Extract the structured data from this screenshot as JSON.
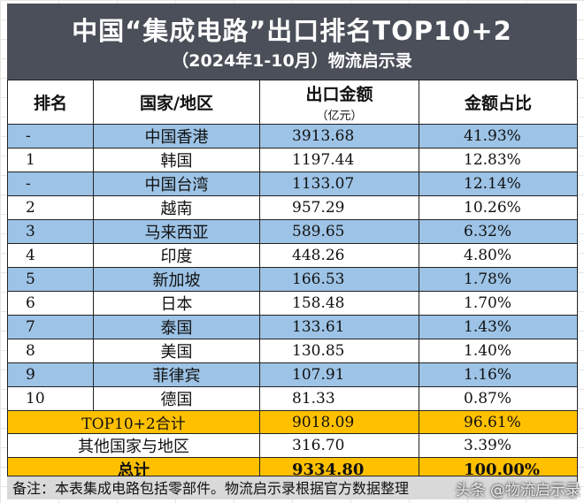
{
  "title": "中国“集成电路”出口排名TOP10+2",
  "subtitle": "（2024年1-10月）物流启示录",
  "headers": {
    "rank": "排名",
    "region": "国家/地区",
    "amount": "出口金额",
    "amount_unit": "（亿元）",
    "share": "金额占比"
  },
  "rows": [
    {
      "rank": "-",
      "region": "中国香港",
      "amount": "3913.68",
      "share": "41.93%"
    },
    {
      "rank": "1",
      "region": "韩国",
      "amount": "1197.44",
      "share": "12.83%"
    },
    {
      "rank": "-",
      "region": "中国台湾",
      "amount": "1133.07",
      "share": "12.14%"
    },
    {
      "rank": "2",
      "region": "越南",
      "amount": "957.29",
      "share": "10.26%"
    },
    {
      "rank": "3",
      "region": "马来西亚",
      "amount": "589.65",
      "share": "6.32%"
    },
    {
      "rank": "4",
      "region": "印度",
      "amount": "448.26",
      "share": "4.80%"
    },
    {
      "rank": "5",
      "region": "新加坡",
      "amount": "166.53",
      "share": "1.78%"
    },
    {
      "rank": "6",
      "region": "日本",
      "amount": "158.48",
      "share": "1.70%"
    },
    {
      "rank": "7",
      "region": "泰国",
      "amount": "133.61",
      "share": "1.43%"
    },
    {
      "rank": "8",
      "region": "美国",
      "amount": "130.85",
      "share": "1.40%"
    },
    {
      "rank": "9",
      "region": "菲律宾",
      "amount": "107.91",
      "share": "1.16%"
    },
    {
      "rank": "10",
      "region": "德国",
      "amount": "81.33",
      "share": "0.87%"
    }
  ],
  "subtotal": {
    "label": "TOP10+2合计",
    "amount": "9018.09",
    "share": "96.61%"
  },
  "others": {
    "label": "其他国家与地区",
    "amount": "316.70",
    "share": "3.39%"
  },
  "total": {
    "label": "总计",
    "amount": "9334.80",
    "share": "100.00%"
  },
  "note": "备注：本表集成电路包括零部件。物流启示录根据官方数据整理",
  "watermark": "头条 @物流启示录",
  "colors": {
    "title_bg": "#4a4f59",
    "row_blue": "#9dc3e6",
    "row_gold": "#ffc000",
    "note_bg": "#d9d9d9"
  },
  "chart_data": {
    "type": "table",
    "title": "中国“集成电路”出口排名TOP10+2",
    "subtitle": "（2024年1-10月）物流启示录",
    "columns": [
      "排名",
      "国家/地区",
      "出口金额（亿元）",
      "金额占比"
    ],
    "rows": [
      [
        "-",
        "中国香港",
        3913.68,
        "41.93%"
      ],
      [
        "1",
        "韩国",
        1197.44,
        "12.83%"
      ],
      [
        "-",
        "中国台湾",
        1133.07,
        "12.14%"
      ],
      [
        "2",
        "越南",
        957.29,
        "10.26%"
      ],
      [
        "3",
        "马来西亚",
        589.65,
        "6.32%"
      ],
      [
        "4",
        "印度",
        448.26,
        "4.80%"
      ],
      [
        "5",
        "新加坡",
        166.53,
        "1.78%"
      ],
      [
        "6",
        "日本",
        158.48,
        "1.70%"
      ],
      [
        "7",
        "泰国",
        133.61,
        "1.43%"
      ],
      [
        "8",
        "美国",
        130.85,
        "1.40%"
      ],
      [
        "9",
        "菲律宾",
        107.91,
        "1.16%"
      ],
      [
        "10",
        "德国",
        81.33,
        "0.87%"
      ]
    ],
    "summary_rows": [
      [
        "TOP10+2合计",
        9018.09,
        "96.61%"
      ],
      [
        "其他国家与地区",
        316.7,
        "3.39%"
      ],
      [
        "总计",
        9334.8,
        "100.00%"
      ]
    ]
  }
}
